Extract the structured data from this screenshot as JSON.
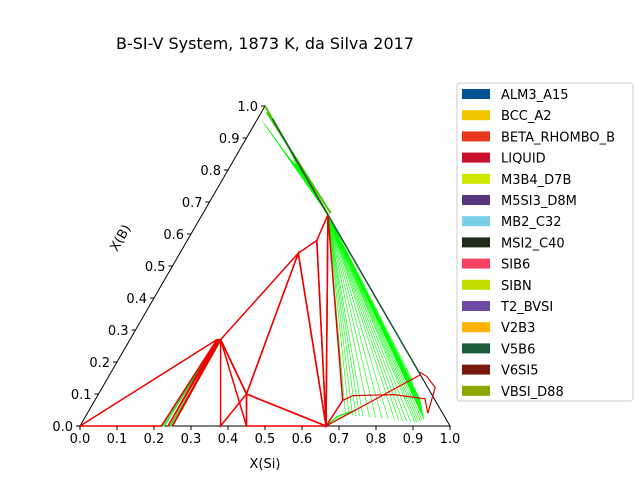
{
  "chart_data": {
    "type": "ternary-phase-diagram",
    "title": "B-SI-V System, 1873 K, da Silva 2017",
    "xlabel": "X(Si)",
    "ylabel": "X(B)",
    "xlim": [
      0.0,
      1.0
    ],
    "ylim": [
      0.0,
      1.0
    ],
    "x_ticks": [
      "0.0",
      "0.1",
      "0.2",
      "0.3",
      "0.4",
      "0.5",
      "0.6",
      "0.7",
      "0.8",
      "0.9",
      "1.0"
    ],
    "y_ticks": [
      "0.0",
      "0.1",
      "0.2",
      "0.3",
      "0.4",
      "0.5",
      "0.6",
      "0.7",
      "0.8",
      "0.9",
      "1.0"
    ],
    "legend_position": "right",
    "legend": [
      {
        "name": "ALM3_A15",
        "color": "#005293"
      },
      {
        "name": "BCC_A2",
        "color": "#f2c400"
      },
      {
        "name": "BETA_RHOMBO_B",
        "color": "#e8361b"
      },
      {
        "name": "LIQUID",
        "color": "#c8102e"
      },
      {
        "name": "M3B4_D7B",
        "color": "#cfe800"
      },
      {
        "name": "M5SI3_D8M",
        "color": "#55377f"
      },
      {
        "name": "MB2_C32",
        "color": "#77cfe8"
      },
      {
        "name": "MSI2_C40",
        "color": "#1f2c18"
      },
      {
        "name": "SIB6",
        "color": "#f74263"
      },
      {
        "name": "SIBN",
        "color": "#c2de00"
      },
      {
        "name": "T2_BVSI",
        "color": "#6d4aa4"
      },
      {
        "name": "V2B3",
        "color": "#ffb300"
      },
      {
        "name": "V5B6",
        "color": "#1a5c3a"
      },
      {
        "name": "V6SI5",
        "color": "#7b1911"
      },
      {
        "name": "VBSI_D88",
        "color": "#8ca800"
      }
    ],
    "triangle": [
      [
        0,
        0
      ],
      [
        1,
        0
      ],
      [
        0,
        1
      ]
    ],
    "three_phase_triangles": [
      [
        [
          0.0,
          0.0
        ],
        [
          0.22,
          0.0
        ],
        [
          0.235,
          0.27
        ]
      ],
      [
        [
          0.238,
          0.0
        ],
        [
          0.24,
          0.27
        ],
        [
          0.235,
          0.27
        ]
      ],
      [
        [
          0.24,
          0.27
        ],
        [
          0.245,
          0.27
        ],
        [
          0.25,
          0.0
        ]
      ],
      [
        [
          0.245,
          0.27
        ],
        [
          0.38,
          0.0
        ],
        [
          0.4,
          0.1
        ]
      ],
      [
        [
          0.245,
          0.27
        ],
        [
          0.4,
          0.1
        ],
        [
          0.45,
          0.0
        ]
      ],
      [
        [
          0.4,
          0.1
        ],
        [
          0.665,
          0.0
        ],
        [
          0.45,
          0.0
        ]
      ],
      [
        [
          0.245,
          0.27
        ],
        [
          0.32,
          0.54
        ],
        [
          0.4,
          0.1
        ]
      ],
      [
        [
          0.32,
          0.54
        ],
        [
          0.665,
          0.0
        ],
        [
          0.4,
          0.1
        ]
      ],
      [
        [
          0.32,
          0.54
        ],
        [
          0.35,
          0.58
        ],
        [
          0.665,
          0.0
        ]
      ],
      [
        [
          0.35,
          0.58
        ],
        [
          0.34,
          0.66
        ],
        [
          0.665,
          0.0
        ]
      ],
      [
        [
          0.34,
          0.66
        ],
        [
          0.67,
          0.08
        ],
        [
          0.665,
          0.0
        ]
      ]
    ],
    "two_phase_regions": [
      {
        "name": "liquid + MSI2 tie-line fan",
        "from": [
          [
            0.34,
            0.66
          ]
        ],
        "to": [
          [
            0.83,
            0.14
          ],
          [
            0.85,
            0.1
          ],
          [
            0.88,
            0.08
          ],
          [
            0.9,
            0.05
          ],
          [
            0.92,
            0.02
          ],
          [
            0.9,
            0.01
          ],
          [
            0.84,
            0.02
          ],
          [
            0.75,
            0.03
          ],
          [
            0.7,
            0.035
          ]
        ]
      },
      {
        "name": "B-rich band",
        "from": [
          [
            0.34,
            0.66
          ],
          [
            0.0,
            1.0
          ]
        ],
        "to": [
          [
            0.02,
            0.95
          ],
          [
            0.34,
            0.66
          ]
        ]
      }
    ],
    "liquid_boundary": [
      [
        0.67,
        0.08
      ],
      [
        0.69,
        0.095
      ],
      [
        0.8,
        0.098
      ],
      [
        0.89,
        0.085
      ],
      [
        0.92,
        0.04
      ],
      [
        0.9,
        0.12
      ],
      [
        0.86,
        0.155
      ],
      [
        0.83,
        0.17
      ],
      [
        0.34,
        0.66
      ]
    ]
  }
}
